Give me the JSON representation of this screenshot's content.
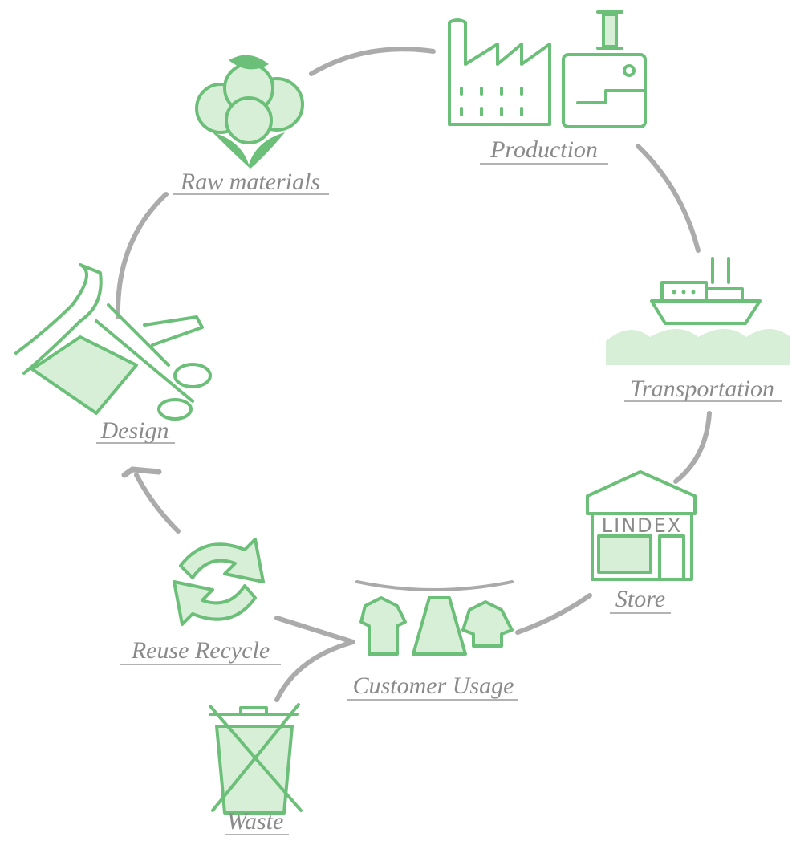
{
  "nodes": [
    {
      "label": "Raw materials"
    },
    {
      "label": "Production"
    },
    {
      "label": "Transportation"
    },
    {
      "label": "Store",
      "sign": "LINDEX"
    },
    {
      "label": "Customer Usage"
    },
    {
      "label": "Reuse Recycle"
    },
    {
      "label": "Waste"
    },
    {
      "label": "Design"
    }
  ]
}
